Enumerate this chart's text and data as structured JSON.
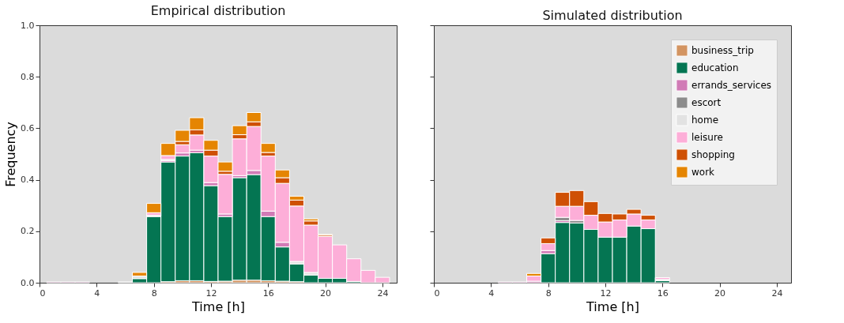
{
  "chart_data": [
    {
      "type": "bar",
      "title": "Empirical distribution",
      "xlabel": "Time [h]",
      "ylabel": "Frequency",
      "stacked": true,
      "x": [
        1,
        2,
        3,
        4,
        5,
        6,
        7,
        8,
        9,
        10,
        11,
        12,
        13,
        14,
        15,
        16,
        17,
        18,
        19,
        20,
        21,
        22,
        23,
        24
      ],
      "xlim": [
        0,
        25
      ],
      "xticks": [
        0,
        4,
        8,
        12,
        16,
        20,
        24
      ],
      "ylim": [
        0,
        1
      ],
      "yticks": [
        {
          "value": 0,
          "label": "0.0"
        },
        0.2,
        0.4,
        0.6,
        0.8,
        {
          "value": 1,
          "label": "1.0"
        }
      ],
      "grid": false,
      "series": [
        {
          "color": "#d39461",
          "values": [
            0,
            0,
            0,
            0,
            0,
            0,
            0,
            0,
            0.004,
            0.008,
            0.008,
            0.005,
            0.006,
            0.01,
            0.01,
            0.008,
            0.006,
            0.004,
            0,
            null,
            0,
            0,
            0,
            0
          ]
        },
        {
          "color": "#047552",
          "values": [
            0,
            0,
            0,
            0,
            0,
            0,
            0.016,
            0.257,
            0.465,
            0.484,
            0.497,
            0.372,
            0.251,
            0.398,
            0.41,
            0.249,
            0.133,
            0.069,
            0.03,
            0.017,
            0.017,
            0.005,
            0,
            0
          ]
        },
        {
          "color": "#d17bb6",
          "values": [
            0.003,
            0.003,
            0.003,
            0,
            0,
            0,
            0,
            0,
            0.005,
            0.012,
            0.01,
            0.012,
            0.01,
            0.008,
            0.016,
            0.021,
            0.018,
            0,
            0,
            0,
            0,
            0,
            0,
            0
          ]
        },
        {
          "color": "#e2e2e2",
          "values": [
            0,
            0,
            0,
            0,
            0,
            0.003,
            0.01,
            0.005,
            0.005,
            0,
            0,
            0,
            0,
            0,
            0,
            0,
            0,
            0.01,
            0.01,
            0,
            0,
            0,
            0,
            0
          ]
        },
        {
          "color": "#fdaed8",
          "values": [
            0,
            0,
            0,
            0,
            0,
            0,
            0,
            0.01,
            0.015,
            0.032,
            0.059,
            0.103,
            0.154,
            0.143,
            0.171,
            0.214,
            0.229,
            0.215,
            0.184,
            0.163,
            0.13,
            0.088,
            0.048,
            0.021
          ]
        },
        {
          "color": "#cf5004",
          "values": [
            0,
            0,
            0,
            0,
            0,
            0,
            0,
            0,
            0,
            0.013,
            0.02,
            0.023,
            0.012,
            0.016,
            0.018,
            0.014,
            0.022,
            0.023,
            0.016,
            0.005,
            0,
            0,
            0,
            0
          ]
        },
        {
          "color": "#e58502",
          "values": [
            0,
            0,
            0,
            0,
            0,
            0,
            0.014,
            0.036,
            0.047,
            0.043,
            0.047,
            0.038,
            0.036,
            0.035,
            0.036,
            0.035,
            0.03,
            0.015,
            0.008,
            0.003,
            0,
            0,
            0,
            0
          ]
        }
      ]
    },
    {
      "type": "bar",
      "title": "Simulated distribution",
      "xlabel": "Time [h]",
      "stacked": true,
      "x": [
        1,
        2,
        3,
        4,
        5,
        6,
        7,
        8,
        9,
        10,
        11,
        12,
        13,
        14,
        15,
        16,
        17,
        18,
        19,
        20,
        21,
        22,
        23,
        24
      ],
      "xlim": [
        0,
        25
      ],
      "xticks": [
        0,
        4,
        8,
        12,
        16,
        20,
        24
      ],
      "ylim": [
        0,
        1
      ],
      "yticks": [
        0,
        0.2,
        0.4,
        0.6,
        0.8,
        1
      ],
      "tick_labels": "x",
      "grid": false,
      "legend": "top right",
      "series": [
        {
          "name": "business_trip",
          "color": "#d39461",
          "values": [
            0,
            0,
            0,
            0,
            0,
            0,
            0,
            0,
            0,
            0,
            0,
            0,
            0,
            0,
            0,
            0,
            0,
            0,
            0,
            0,
            0,
            0,
            0,
            0
          ]
        },
        {
          "name": "education",
          "color": "#047552",
          "values": [
            0,
            0,
            0,
            0,
            0,
            0,
            0,
            0.113,
            0.234,
            0.232,
            0.207,
            0.177,
            0.177,
            0.22,
            0.21,
            0.008,
            0,
            0,
            0,
            0,
            0,
            0,
            0,
            0
          ]
        },
        {
          "name": "errands_services",
          "color": "#d17bb6",
          "values": [
            0,
            0,
            0,
            0,
            0.003,
            0.003,
            0.006,
            0.012,
            0.007,
            0,
            0,
            0,
            0,
            0,
            0,
            0,
            0,
            0,
            0,
            0,
            0,
            0,
            0,
            0
          ]
        },
        {
          "name": "escort",
          "color": "#8c8c8c",
          "values": [
            0,
            0,
            0,
            0,
            0,
            0,
            0,
            0,
            0.013,
            0.01,
            0,
            0,
            0,
            0,
            0,
            0,
            0,
            0,
            0,
            0,
            0,
            0,
            0,
            0
          ]
        },
        {
          "name": "home",
          "color": "#e2e2e2",
          "values": [
            0,
            0,
            0,
            0,
            0,
            0,
            0,
            0,
            0,
            0,
            0,
            0,
            0,
            0,
            0,
            0.005,
            0,
            0,
            0,
            0,
            0,
            0,
            0,
            0
          ]
        },
        {
          "name": "leisure",
          "color": "#fdaed8",
          "values": [
            0,
            0,
            0,
            0,
            0,
            0,
            0.02,
            0.027,
            0.043,
            0.055,
            0.055,
            0.059,
            0.067,
            0.047,
            0.034,
            0.007,
            0,
            0,
            0,
            0,
            0,
            0,
            0,
            0
          ]
        },
        {
          "name": "shopping",
          "color": "#cf5004",
          "values": [
            0,
            0,
            0,
            0,
            0,
            0,
            0,
            0.022,
            0.054,
            0.061,
            0.053,
            0.033,
            0.023,
            0.018,
            0.018,
            0,
            0,
            0,
            0,
            0,
            0,
            0,
            0,
            0
          ]
        },
        {
          "name": "work",
          "color": "#e58502",
          "values": [
            0,
            0,
            0,
            0,
            0,
            0,
            0.01,
            0,
            0,
            0,
            0,
            0,
            0,
            0,
            0,
            0,
            0,
            0,
            0,
            0,
            0,
            0,
            0,
            0
          ]
        }
      ]
    }
  ]
}
